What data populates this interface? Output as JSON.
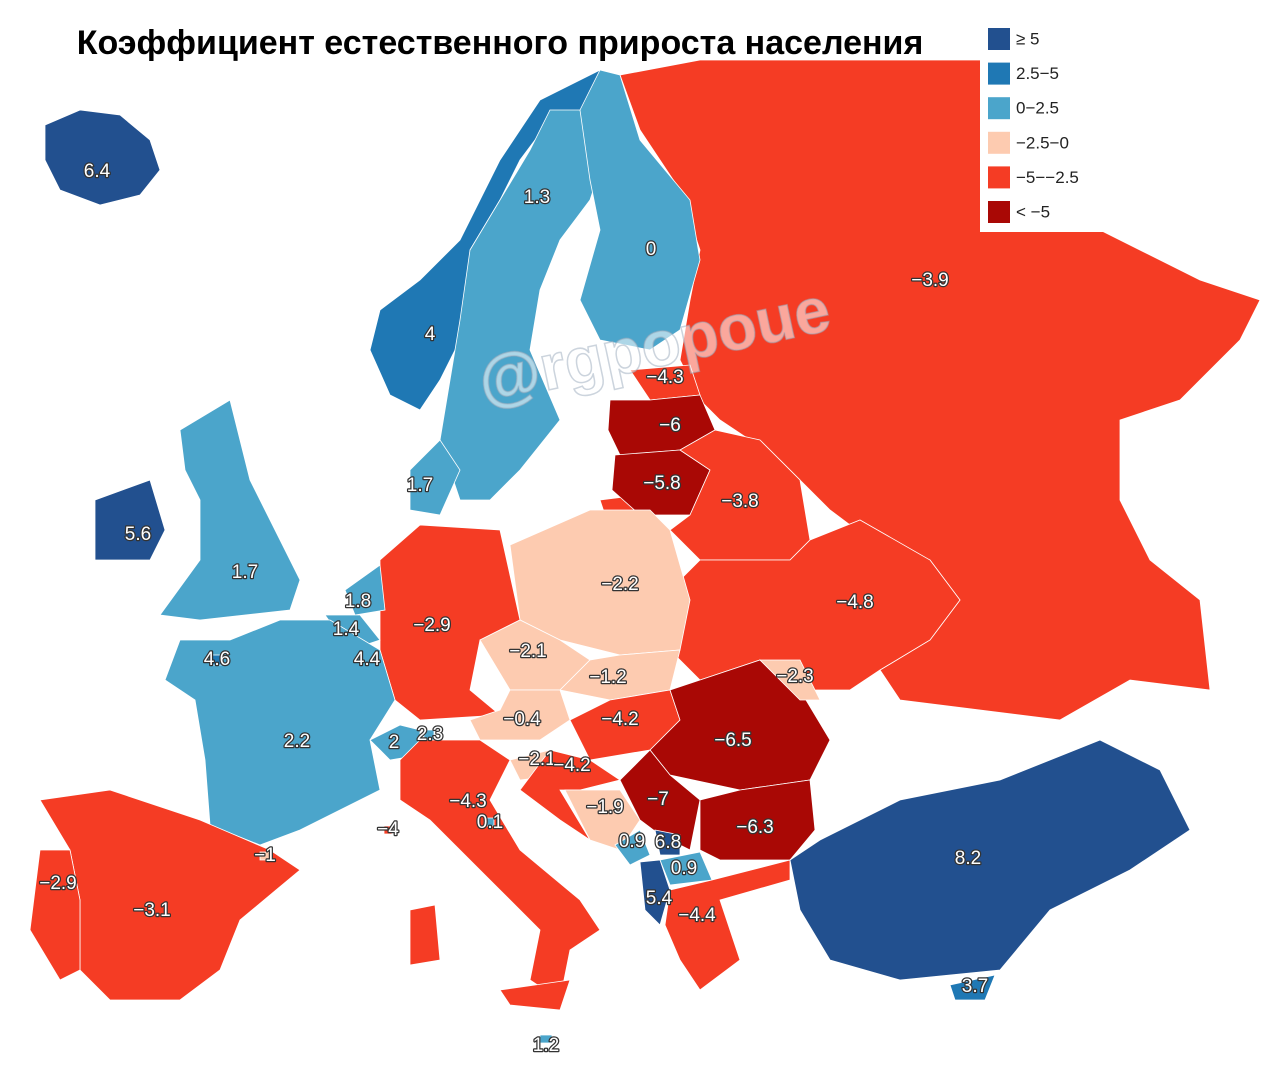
{
  "title": "Коэффициент естественного прироста населения",
  "watermark": "@rgpopoue",
  "legend": [
    {
      "label": "≥ 5",
      "color": "#22508f"
    },
    {
      "label": "2.5−5",
      "color": "#1f78b4"
    },
    {
      "label": "0−2.5",
      "color": "#4ba5cb"
    },
    {
      "label": "−2.5−0",
      "color": "#fdcbb0"
    },
    {
      "label": "−5−−2.5",
      "color": "#f53c24"
    },
    {
      "label": "< −5",
      "color": "#a90805"
    }
  ],
  "regions": [
    {
      "label": "−3.9",
      "color": "#f53c24"
    },
    {
      "label": "6.4",
      "color": "#22508f"
    },
    {
      "label": "4",
      "color": "#1f78b4"
    },
    {
      "label": "1.3",
      "color": "#4ba5cb"
    },
    {
      "label": "0",
      "color": "#4ba5cb"
    },
    {
      "label": "−4.3",
      "color": "#f53c24"
    },
    {
      "label": "−6",
      "color": "#a90805"
    },
    {
      "label": "−5.8",
      "color": "#a90805"
    },
    {
      "label": "−3.8",
      "color": "#f53c24"
    },
    {
      "label": "−4.8",
      "color": "#f53c24"
    },
    {
      "label": "−2.2",
      "color": "#fdcbb0"
    },
    {
      "label": "−2.9",
      "color": "#f53c24"
    },
    {
      "label": "1.7",
      "color": "#4ba5cb"
    },
    {
      "label": "1.8",
      "color": "#4ba5cb"
    },
    {
      "label": "1.4",
      "color": "#4ba5cb"
    },
    {
      "label": "4.4",
      "color": "#1f78b4"
    },
    {
      "label": "2.2",
      "color": "#4ba5cb"
    },
    {
      "label": "1.7",
      "color": "#4ba5cb"
    },
    {
      "label": "5.6",
      "color": "#22508f"
    },
    {
      "label": "−3.1",
      "color": "#f53c24"
    },
    {
      "label": "−2.9",
      "color": "#f53c24"
    },
    {
      "label": "−2.1",
      "color": "#fdcbb0"
    },
    {
      "label": "−1.2",
      "color": "#fdcbb0"
    },
    {
      "label": "−0.4",
      "color": "#fdcbb0"
    },
    {
      "label": "2",
      "color": "#4ba5cb"
    },
    {
      "label": "−4.2",
      "color": "#f53c24"
    },
    {
      "label": "−6.5",
      "color": "#a90805"
    },
    {
      "label": "−2.3",
      "color": "#fdcbb0"
    },
    {
      "label": "−4.3",
      "color": "#f53c24"
    },
    {
      "label": "−2.1",
      "color": "#fdcbb0"
    },
    {
      "label": "−4.2",
      "color": "#f53c24"
    },
    {
      "label": "−1.9",
      "color": "#fdcbb0"
    },
    {
      "label": "−7",
      "color": "#a90805"
    },
    {
      "label": "0.9",
      "color": "#4ba5cb"
    },
    {
      "label": "6.8",
      "color": "#22508f"
    },
    {
      "label": "0.9",
      "color": "#4ba5cb"
    },
    {
      "label": "5.4",
      "color": "#22508f"
    },
    {
      "label": "−6.3",
      "color": "#a90805"
    },
    {
      "label": "−4.4",
      "color": "#f53c24"
    },
    {
      "label": "8.2",
      "color": "#22508f"
    },
    {
      "label": "3.7",
      "color": "#1f78b4"
    },
    {
      "label": "4.6",
      "color": "#1f78b4"
    },
    {
      "label": "2.3",
      "color": "#4ba5cb"
    },
    {
      "label": "0.1",
      "color": "#4ba5cb"
    },
    {
      "label": "−4",
      "color": "#f53c24"
    },
    {
      "label": "−1",
      "color": "#fdcbb0"
    },
    {
      "label": "1.2",
      "color": "#4ba5cb"
    }
  ]
}
